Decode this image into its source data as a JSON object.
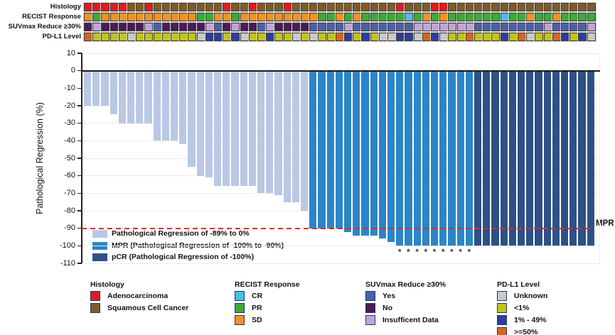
{
  "annotation_tracks": {
    "palette": {
      "histology": {
        "A": "#e41a1c",
        "S": "#7d5c27"
      },
      "recist": {
        "CR": "#45c0ea",
        "PR": "#3dab37",
        "SD": "#f6921e"
      },
      "suvmax": {
        "Y": "#4c5fa7",
        "N": "#4c1a57",
        "I": "#c2a3d9"
      },
      "pdl1": {
        "U": "#c9c9c9",
        "L": "#c2c414",
        "M": "#2c3e9c",
        "H": "#d2671f"
      }
    },
    "rows": [
      {
        "id": "histology",
        "label": "Histology",
        "values": [
          "A",
          "A",
          "A",
          "A",
          "A",
          "S",
          "S",
          "A",
          "S",
          "S",
          "S",
          "S",
          "S",
          "S",
          "S",
          "S",
          "A",
          "S",
          "S",
          "A",
          "S",
          "S",
          "S",
          "A",
          "S",
          "S",
          "S",
          "S",
          "S",
          "S",
          "S",
          "S",
          "S",
          "S",
          "S",
          "S",
          "A",
          "S",
          "S",
          "S",
          "A",
          "A",
          "S",
          "S",
          "S",
          "S",
          "S",
          "S",
          "S",
          "S",
          "S",
          "S",
          "S",
          "S",
          "S",
          "S",
          "S",
          "S",
          "S"
        ]
      },
      {
        "id": "recist",
        "label": "RECIST Response",
        "values": [
          "SD",
          "PR",
          "SD",
          "SD",
          "SD",
          "SD",
          "SD",
          "SD",
          "SD",
          "SD",
          "SD",
          "SD",
          "SD",
          "PR",
          "PR",
          "SD",
          "SD",
          "PR",
          "SD",
          "SD",
          "SD",
          "SD",
          "SD",
          "SD",
          "SD",
          "SD",
          "SD",
          "PR",
          "PR",
          "SD",
          "PR",
          "SD",
          "PR",
          "PR",
          "PR",
          "PR",
          "PR",
          "CR",
          "PR",
          "SD",
          "PR",
          "SD",
          "PR",
          "PR",
          "PR",
          "PR",
          "PR",
          "PR",
          "CR",
          "PR",
          "PR",
          "SD",
          "PR",
          "PR",
          "SD",
          "PR",
          "PR",
          "PR",
          "PR"
        ]
      },
      {
        "id": "suvmax",
        "label": "SUVmax Reduce ≥30%",
        "values": [
          "N",
          "I",
          "N",
          "N",
          "N",
          "N",
          "N",
          "I",
          "Y",
          "N",
          "N",
          "N",
          "N",
          "N",
          "I",
          "Y",
          "N",
          "I",
          "N",
          "N",
          "Y",
          "I",
          "N",
          "N",
          "N",
          "N",
          "Y",
          "Y",
          "Y",
          "Y",
          "I",
          "Y",
          "Y",
          "Y",
          "Y",
          "Y",
          "Y",
          "Y",
          "I",
          "I",
          "I",
          "I",
          "I",
          "I",
          "I",
          "Y",
          "Y",
          "Y",
          "Y",
          "Y",
          "Y",
          "Y",
          "Y",
          "I",
          "Y",
          "Y",
          "Y",
          "Y",
          "I"
        ]
      },
      {
        "id": "pdl1",
        "label": "PD-L1 Level",
        "values": [
          "H",
          "L",
          "L",
          "L",
          "L",
          "U",
          "L",
          "L",
          "L",
          "L",
          "L",
          "L",
          "L",
          "U",
          "M",
          "M",
          "L",
          "M",
          "U",
          "L",
          "L",
          "M",
          "L",
          "L",
          "U",
          "L",
          "U",
          "L",
          "L",
          "H",
          "M",
          "L",
          "M",
          "L",
          "U",
          "U",
          "M",
          "M",
          "U",
          "H",
          "M",
          "U",
          "L",
          "L",
          "H",
          "L",
          "L",
          "L",
          "M",
          "L",
          "H",
          "U",
          "L",
          "L",
          "H",
          "M",
          "L",
          "M",
          "U"
        ]
      }
    ]
  },
  "chart_data": {
    "type": "bar",
    "subtype": "waterfall",
    "title": "",
    "ylabel": "Pathological Regression (%)",
    "ylim": [
      -110,
      10
    ],
    "yticks": [
      10,
      0,
      -10,
      -20,
      -30,
      -40,
      -50,
      -60,
      -70,
      -80,
      -90,
      -100,
      -110
    ],
    "grid": "horizontal",
    "n_patients": 59,
    "threshold": {
      "value": -90,
      "label": "MPR",
      "color": "#e8272b",
      "style": "dashed"
    },
    "colors": {
      "reg": "#b9c8e4",
      "mpr": "#2b85c8",
      "pcr": "#2d5186"
    },
    "series": [
      {
        "name": "Pathological Regression (%)",
        "values": [
          -20,
          -20,
          -20,
          -25,
          -30,
          -30,
          -30,
          -30,
          -40,
          -40,
          -40,
          -42,
          -55,
          -60,
          -61,
          -66,
          -66,
          -66,
          -66,
          -66,
          -70,
          -70,
          -71,
          -75,
          -75,
          -80,
          -90,
          -90,
          -90,
          -90,
          -92,
          -94,
          -94,
          -94,
          -96,
          -98,
          -100,
          -100,
          -100,
          -100,
          -100,
          -100,
          -100,
          -100,
          -100,
          -100,
          -100,
          -100,
          -100,
          -100,
          -100,
          -100,
          -100,
          -100,
          -100,
          -100,
          -100,
          -100,
          -100
        ],
        "groups": [
          "reg",
          "reg",
          "reg",
          "reg",
          "reg",
          "reg",
          "reg",
          "reg",
          "reg",
          "reg",
          "reg",
          "reg",
          "reg",
          "reg",
          "reg",
          "reg",
          "reg",
          "reg",
          "reg",
          "reg",
          "reg",
          "reg",
          "reg",
          "reg",
          "reg",
          "reg",
          "mpr",
          "mpr",
          "mpr",
          "mpr",
          "mpr",
          "mpr",
          "mpr",
          "mpr",
          "mpr",
          "mpr",
          "mpr",
          "mpr",
          "mpr",
          "mpr",
          "mpr",
          "mpr",
          "mpr",
          "mpr",
          "mpr",
          "pcr",
          "pcr",
          "pcr",
          "pcr",
          "pcr",
          "pcr",
          "pcr",
          "pcr",
          "pcr",
          "pcr",
          "pcr",
          "pcr",
          "pcr",
          "pcr"
        ]
      }
    ],
    "asterisk_columns": [
      37,
      38,
      39,
      40,
      41,
      42,
      43,
      44,
      45
    ],
    "asterisk_glyph": "*"
  },
  "plot_legend": {
    "items": [
      {
        "key": "reg",
        "label": "Pathological Regression of -89% to 0%",
        "color": "#b9c8e4"
      },
      {
        "key": "mpr",
        "label": "MPR (Pathological Regression of -100% to -90%)",
        "color": "#2b85c8"
      },
      {
        "key": "pcr",
        "label": "pCR (Pathological Regression of -100%)",
        "color": "#2d5186"
      }
    ]
  },
  "bottom_legends": [
    {
      "title": "Histology",
      "items": [
        {
          "label": "Adenocarcinoma",
          "color": "#e41a1c"
        },
        {
          "label": "Squamous Cell Cancer",
          "color": "#7d5c27"
        }
      ]
    },
    {
      "title": "RECIST Response",
      "items": [
        {
          "label": "CR",
          "color": "#45c0ea"
        },
        {
          "label": "PR",
          "color": "#3dab37"
        },
        {
          "label": "SD",
          "color": "#f6921e"
        }
      ]
    },
    {
      "title": "SUVmax Reduce ≥30%",
      "items": [
        {
          "label": "Yes",
          "color": "#4c5fa7"
        },
        {
          "label": "No",
          "color": "#4c1a57"
        },
        {
          "label": "Insufficent Data",
          "color": "#c2a3d9"
        }
      ]
    },
    {
      "title": "PD-L1 Level",
      "items": [
        {
          "label": "Unknown",
          "color": "#c9c9c9"
        },
        {
          "label": "<1%",
          "color": "#c2c414"
        },
        {
          "label": "1% - 49%",
          "color": "#2c3e9c"
        },
        {
          "label": ">=50%",
          "color": "#d2671f"
        }
      ]
    }
  ]
}
